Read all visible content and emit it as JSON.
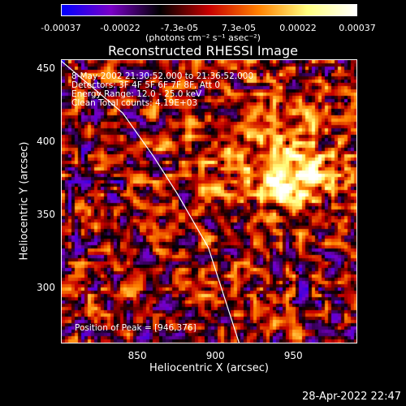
{
  "chart_data": {
    "type": "heatmap",
    "title": "Reconstructed RHESSI Image",
    "xlabel": "Heliocentric X (arcsec)",
    "ylabel": "Heliocentric Y (arcsec)",
    "xlim": [
      801,
      991
    ],
    "ylim": [
      262,
      456
    ],
    "xticks": [
      "850",
      "900",
      "950"
    ],
    "xtick_values": [
      850,
      900,
      950
    ],
    "yticks": [
      "300",
      "350",
      "400",
      "450"
    ],
    "ytick_values": [
      300,
      350,
      400,
      450
    ],
    "colorbar": {
      "range": [
        -0.00037,
        0.00037
      ],
      "tick_labels": [
        "-0.00037",
        "-0.00022",
        "-7.3e-05",
        "7.3e-05",
        "0.00022",
        "0.00037"
      ],
      "units": "(photons cm⁻² s⁻¹ asec⁻²)",
      "colors": [
        "#0000ff",
        "#7a00c8",
        "#000000",
        "#c80000",
        "#ff8000",
        "#ffff80",
        "#ffffff"
      ]
    },
    "peak": [
      946,
      376
    ],
    "annotations": [
      "8-May-2002 21:30:52.000 to 21:36:52.000",
      "Detectors: 3F 4F 5F 6F 7F 8F, Att 0",
      "Energy Range: 12.0 - 25.0 keV",
      "Clean    Total counts: 4.19E+03"
    ],
    "peak_label": "Position of Peak = [946,376]",
    "limb_curve": [
      [
        800,
        456
      ],
      [
        840,
        420
      ],
      [
        860,
        390
      ],
      [
        875,
        365
      ],
      [
        895,
        328
      ],
      [
        915,
        262
      ]
    ]
  },
  "timestamp": "28-Apr-2022 22:47"
}
